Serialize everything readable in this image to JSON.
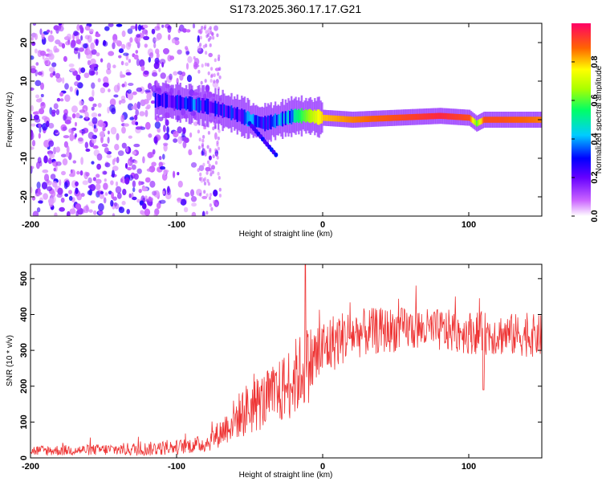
{
  "title": "S173.2025.360.17.17.G21",
  "chart_data": [
    {
      "type": "heatmap",
      "title": "S173.2025.360.17.17.G21",
      "xlabel": "Height of straight line (km)",
      "ylabel": "Frequency (Hz)",
      "xlim": [
        -200,
        150
      ],
      "ylim": [
        -25,
        25
      ],
      "xticks": [
        -200,
        -100,
        0,
        100
      ],
      "yticks": [
        -20,
        -10,
        0,
        10,
        20
      ],
      "xtick_labels": [
        "-200",
        "-100",
        "0",
        "100"
      ],
      "ytick_labels": [
        "-20",
        "-10",
        "0",
        "10",
        "20"
      ],
      "colorbar": {
        "label": "Normalized spectral amplitude",
        "range": [
          0,
          1
        ],
        "ticks": [
          0.0,
          0.2,
          0.4,
          0.6,
          0.8
        ],
        "tick_labels": [
          "0.0",
          "0.2",
          "0.4",
          "0.6",
          "0.8"
        ],
        "colormap": [
          "#ffffff",
          "#cc66ff",
          "#6600ff",
          "#0000ff",
          "#00ccff",
          "#00ff66",
          "#aaff00",
          "#ffff00",
          "#ff6600",
          "#ff0066"
        ]
      },
      "ridge": {
        "x": [
          -110,
          -100,
          -90,
          -80,
          -70,
          -60,
          -50,
          -40,
          -30,
          -20,
          -10,
          0,
          20,
          50,
          80,
          100,
          105,
          110,
          120,
          150
        ],
        "freq": [
          5,
          4.5,
          4,
          3.5,
          2.5,
          1.5,
          0,
          -1,
          0,
          1,
          1,
          0.5,
          0,
          0.5,
          1,
          0.5,
          -1,
          0,
          0,
          0
        ],
        "amplitude": [
          0.25,
          0.3,
          0.35,
          0.3,
          0.3,
          0.3,
          0.35,
          0.3,
          0.4,
          0.5,
          0.65,
          0.8,
          0.85,
          0.9,
          0.95,
          0.9,
          0.6,
          0.9,
          0.9,
          0.85
        ]
      }
    },
    {
      "type": "line",
      "xlabel": "Height of straight line (km)",
      "ylabel": "SNR (10 * v/v)",
      "xlim": [
        -200,
        150
      ],
      "ylim": [
        0,
        540
      ],
      "xticks": [
        -200,
        -100,
        0,
        100
      ],
      "yticks": [
        0,
        100,
        200,
        300,
        400,
        500
      ],
      "xtick_labels": [
        "-200",
        "-100",
        "0",
        "100"
      ],
      "ytick_labels": [
        "0",
        "100",
        "200",
        "300",
        "400",
        "500"
      ],
      "color": "#ee3333",
      "envelope": {
        "x": [
          -200,
          -160,
          -120,
          -100,
          -80,
          -70,
          -60,
          -50,
          -40,
          -30,
          -20,
          -10,
          0,
          10,
          20,
          40,
          60,
          80,
          100,
          120,
          150
        ],
        "mid": [
          20,
          22,
          25,
          30,
          40,
          70,
          110,
          140,
          160,
          180,
          220,
          260,
          300,
          330,
          345,
          355,
          360,
          355,
          350,
          345,
          340
        ],
        "spread": [
          15,
          15,
          20,
          20,
          25,
          40,
          60,
          80,
          80,
          90,
          110,
          110,
          90,
          80,
          70,
          65,
          60,
          60,
          60,
          60,
          60
        ]
      }
    }
  ]
}
